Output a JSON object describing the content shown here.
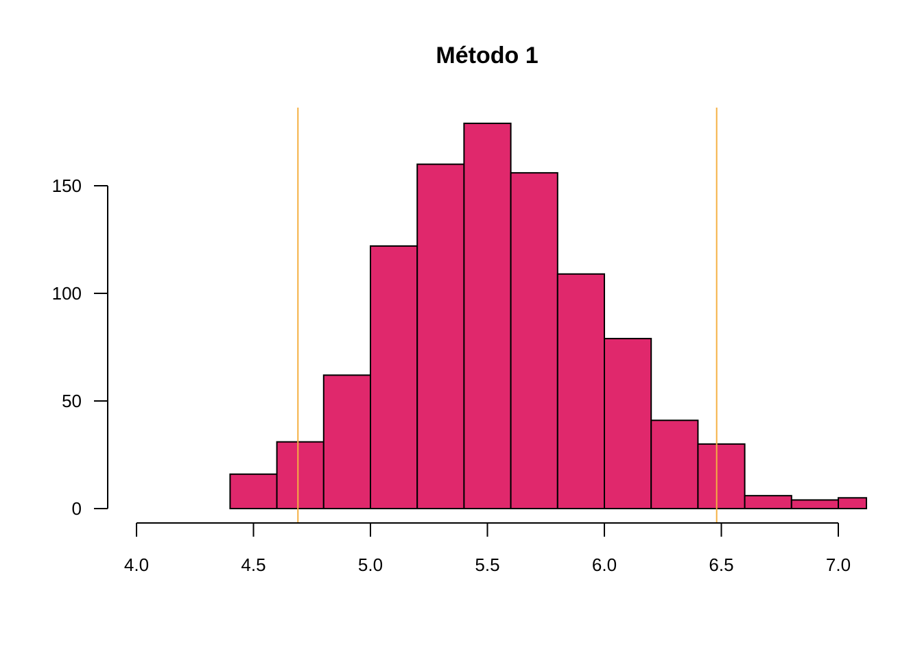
{
  "chart_data": {
    "type": "bar",
    "title": "Método 1",
    "xlabel": "",
    "ylabel": "",
    "xlim": [
      4.0,
      7.12
    ],
    "ylim": [
      0,
      180
    ],
    "bin_edges": [
      4.4,
      4.6,
      4.8,
      5.0,
      5.2,
      5.4,
      5.6,
      5.8,
      6.0,
      6.2,
      6.4,
      6.6,
      6.8,
      7.0,
      7.2
    ],
    "values": [
      16,
      31,
      62,
      122,
      160,
      179,
      156,
      109,
      79,
      41,
      30,
      6,
      4,
      5
    ],
    "x_ticks": [
      "4.0",
      "4.5",
      "5.0",
      "5.5",
      "6.0",
      "6.5",
      "7.0"
    ],
    "y_ticks": [
      "0",
      "50",
      "100",
      "150"
    ],
    "reference_lines": [
      4.69,
      6.48
    ],
    "grid": false,
    "legend": "none",
    "colors": {
      "bar_fill": "#E0286C",
      "bar_edge": "#000000",
      "reference_line": "#F5B041"
    }
  }
}
